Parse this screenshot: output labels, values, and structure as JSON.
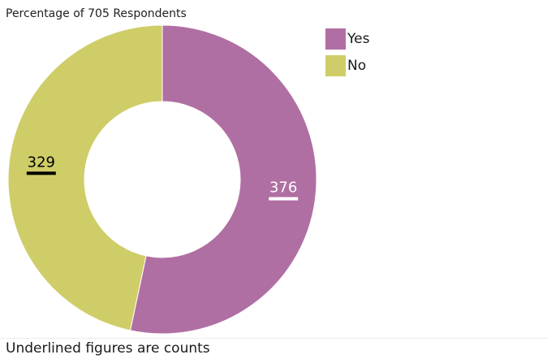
{
  "chart_data": {
    "type": "pie",
    "variant": "donut",
    "title": "Percentage of 705 Respondents",
    "total": 705,
    "slices": [
      {
        "label": "Yes",
        "value": 376,
        "color": "#b06fa3",
        "label_color": "#ffffff"
      },
      {
        "label": "No",
        "value": 329,
        "color": "#cfcd68",
        "label_color": "#000000"
      }
    ],
    "legend_position": "top-right"
  },
  "footnote": "Underlined figures are counts"
}
